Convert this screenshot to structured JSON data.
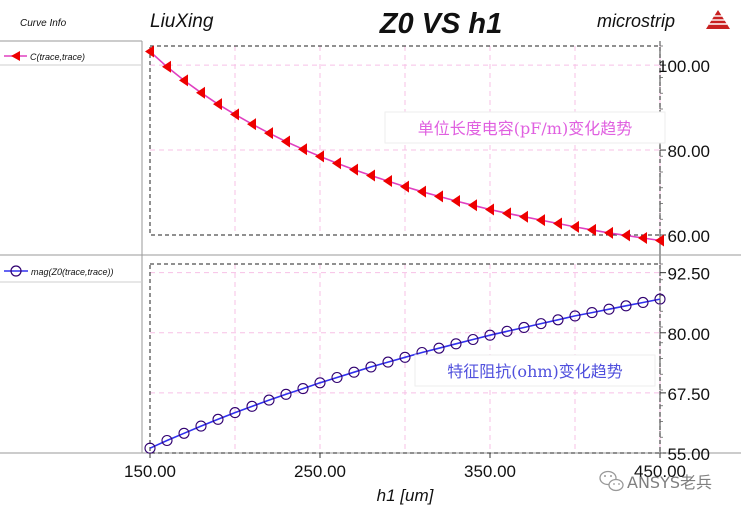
{
  "header": {
    "left_label": "LiuXing",
    "title": "Z0 VS h1",
    "right_label": "microstrip",
    "logo_icon": "ansys-triangle-logo-icon"
  },
  "legend_panel": {
    "heading": "Curve Info",
    "top_entry": "C(trace,trace)",
    "bottom_entry": "mag(Z0(trace,trace))"
  },
  "watermark": {
    "icon": "wechat-logo-icon",
    "text": "ANSYS老兵"
  },
  "colors": {
    "capacitance_line": "#e040c0",
    "capacitance_marker": "#ee0000",
    "impedance_line": "#3030ee",
    "impedance_marker": "#300070",
    "capacitance_note": "#e060e0",
    "impedance_note": "#5050dd",
    "grid": "#f7c0e6",
    "dash_border": "#222222"
  },
  "chart_data": {
    "type": "line",
    "xlabel": "h1 [um]",
    "x_ticks": [
      "150.00",
      "250.00",
      "350.00",
      "450.00"
    ],
    "xlim": [
      150,
      450
    ],
    "panels": [
      {
        "id": "capacitance",
        "series_name": "C(trace,trace)",
        "annotation": "单位长度电容(pF/m)变化趋势",
        "y_ticks": [
          "100.00",
          "80.00",
          "60.00"
        ],
        "ylim": [
          60,
          104.5
        ],
        "x": [
          150,
          160,
          170,
          180,
          190,
          200,
          210,
          220,
          230,
          240,
          250,
          260,
          270,
          280,
          290,
          300,
          310,
          320,
          330,
          340,
          350,
          360,
          370,
          380,
          390,
          400,
          410,
          420,
          430,
          440,
          450
        ],
        "y": [
          103.2,
          99.6,
          96.4,
          93.5,
          90.8,
          88.4,
          86.1,
          84.0,
          82.0,
          80.2,
          78.5,
          76.9,
          75.4,
          74.0,
          72.7,
          71.4,
          70.2,
          69.1,
          68.0,
          67.0,
          66.0,
          65.1,
          64.3,
          63.5,
          62.7,
          61.9,
          61.2,
          60.5,
          59.9,
          59.3,
          58.7
        ]
      },
      {
        "id": "impedance",
        "series_name": "mag(Z0(trace,trace))",
        "annotation": "特征阻抗(ohm)变化趋势",
        "y_ticks": [
          "92.50",
          "80.00",
          "67.50",
          "55.00"
        ],
        "ylim": [
          55,
          94.3
        ],
        "x": [
          150,
          160,
          170,
          180,
          190,
          200,
          210,
          220,
          230,
          240,
          250,
          260,
          270,
          280,
          290,
          300,
          310,
          320,
          330,
          340,
          350,
          360,
          370,
          380,
          390,
          400,
          410,
          420,
          430,
          440,
          450
        ],
        "y": [
          56.0,
          57.6,
          59.1,
          60.6,
          62.0,
          63.4,
          64.7,
          66.0,
          67.2,
          68.4,
          69.6,
          70.7,
          71.8,
          72.9,
          73.9,
          74.9,
          75.9,
          76.8,
          77.7,
          78.6,
          79.5,
          80.3,
          81.1,
          81.9,
          82.7,
          83.5,
          84.2,
          84.9,
          85.6,
          86.3,
          87.0
        ]
      }
    ]
  }
}
